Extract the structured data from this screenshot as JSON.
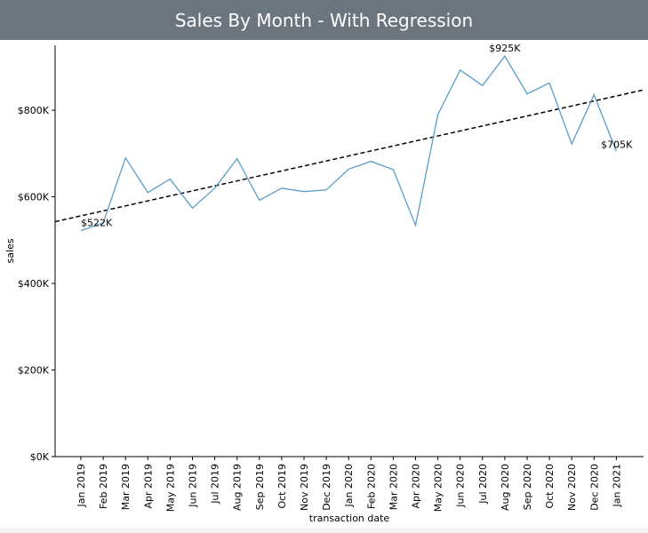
{
  "header": {
    "title": "Sales By Month - With Regression"
  },
  "colors": {
    "header_bg": "#6c757d",
    "series": "#5b9ec9",
    "regression": "#000000"
  },
  "chart_data": {
    "type": "line",
    "title": "Sales By Month - With Regression",
    "xlabel": "transaction date",
    "ylabel": "sales",
    "ylim": [
      0,
      950000
    ],
    "yticks": [
      0,
      200000,
      400000,
      600000,
      800000
    ],
    "ytick_labels": [
      "$0K",
      "$200K",
      "$400K",
      "$600K",
      "$800K"
    ],
    "categories": [
      "Jan 2019",
      "Feb 2019",
      "Mar 2019",
      "Apr 2019",
      "May 2019",
      "Jun 2019",
      "Jul 2019",
      "Aug 2019",
      "Sep 2019",
      "Oct 2019",
      "Nov 2019",
      "Dec 2019",
      "Jan 2020",
      "Feb 2020",
      "Mar 2020",
      "Apr 2020",
      "May 2020",
      "Jun 2020",
      "Jul 2020",
      "Aug 2020",
      "Sep 2020",
      "Oct 2020",
      "Nov 2020",
      "Dec 2020",
      "Jan 2021"
    ],
    "series": [
      {
        "name": "sales",
        "values": [
          522000,
          540000,
          690000,
          610000,
          641000,
          574000,
          620000,
          688000,
          592000,
          620000,
          612000,
          616000,
          664000,
          682000,
          663000,
          534000,
          790000,
          893000,
          857000,
          925000,
          838000,
          863000,
          722000,
          836000,
          705000
        ]
      }
    ],
    "regression": {
      "name": "regression",
      "style": "dashed",
      "start_value": 556000,
      "end_value": 847000
    },
    "annotations": [
      {
        "index": 0,
        "text": "$522K"
      },
      {
        "index": 19,
        "text": "$925K"
      },
      {
        "index": 24,
        "text": "$705K"
      }
    ]
  }
}
